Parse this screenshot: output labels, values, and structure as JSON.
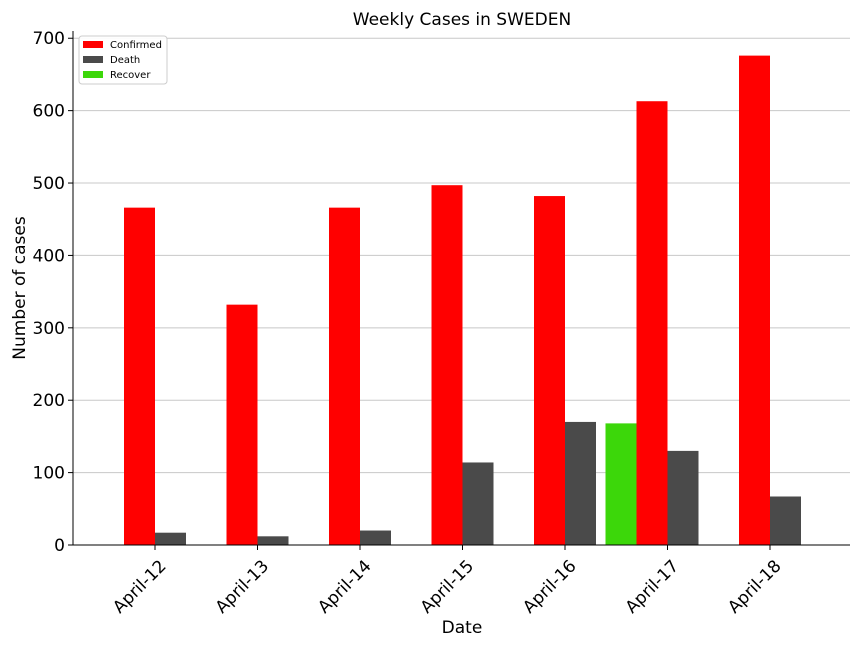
{
  "chart_data": {
    "type": "bar",
    "title": "Weekly Cases in SWEDEN",
    "xlabel": "Date",
    "ylabel": "Number of cases",
    "categories": [
      "April-12",
      "April-13",
      "April-14",
      "April-15",
      "April-16",
      "April-17",
      "April-18"
    ],
    "series": [
      {
        "name": "Confirmed",
        "color": "#ff0000",
        "values": [
          466,
          332,
          466,
          497,
          482,
          613,
          676
        ]
      },
      {
        "name": "Death",
        "color": "#4a4a4a",
        "values": [
          17,
          12,
          20,
          114,
          170,
          130,
          67
        ]
      },
      {
        "name": "Recover",
        "color": "#3cd70a",
        "values": [
          0,
          0,
          0,
          0,
          0,
          168,
          0
        ]
      }
    ],
    "ylim": [
      0,
      710
    ],
    "yticks": [
      0,
      100,
      200,
      300,
      400,
      500,
      600,
      700
    ],
    "grid": "horizontal",
    "legend_position": "top-left"
  }
}
